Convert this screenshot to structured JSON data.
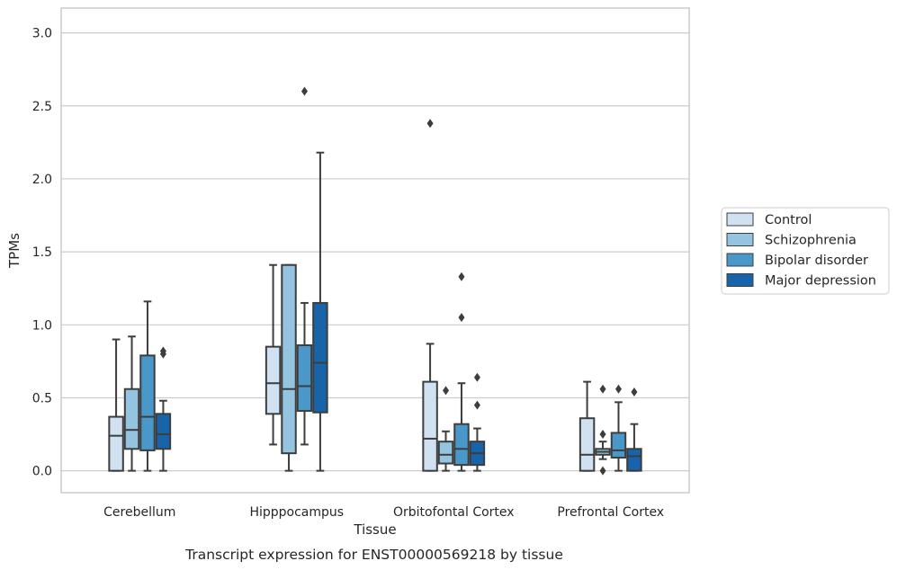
{
  "chart_data": {
    "type": "boxplot",
    "caption": "Transcript expression for ENST00000569218 by tissue",
    "xlabel": "Tissue",
    "ylabel": "TPMs",
    "ylim": [
      -0.15,
      3.17
    ],
    "yticks": [
      0.0,
      0.5,
      1.0,
      1.5,
      2.0,
      2.5,
      3.0
    ],
    "ytick_labels": [
      "0.0",
      "0.5",
      "1.0",
      "1.5",
      "2.0",
      "2.5",
      "3.0"
    ],
    "grid": "horizontal",
    "legend_position": "right",
    "categories": [
      "Cerebellum",
      "Hipppocampus",
      "Orbitofontal Cortex",
      "Prefrontal Cortex"
    ],
    "series": [
      {
        "name": "Control",
        "color": "#d0e1f2",
        "boxes": [
          {
            "whislo": 0.0,
            "q1": 0.0,
            "med": 0.24,
            "q3": 0.37,
            "whishi": 0.9,
            "fliers": []
          },
          {
            "whislo": 0.18,
            "q1": 0.39,
            "med": 0.6,
            "q3": 0.85,
            "whishi": 1.41,
            "fliers": []
          },
          {
            "whislo": 0.0,
            "q1": 0.0,
            "med": 0.22,
            "q3": 0.61,
            "whishi": 0.87,
            "fliers": [
              2.38
            ]
          },
          {
            "whislo": 0.0,
            "q1": 0.0,
            "med": 0.11,
            "q3": 0.36,
            "whishi": 0.61,
            "fliers": []
          }
        ]
      },
      {
        "name": "Schizophrenia",
        "color": "#94c4df",
        "boxes": [
          {
            "whislo": 0.0,
            "q1": 0.15,
            "med": 0.28,
            "q3": 0.56,
            "whishi": 0.92,
            "fliers": []
          },
          {
            "whislo": 0.0,
            "q1": 0.12,
            "med": 0.56,
            "q3": 1.41,
            "whishi": 1.41,
            "fliers": []
          },
          {
            "whislo": 0.0,
            "q1": 0.05,
            "med": 0.11,
            "q3": 0.2,
            "whishi": 0.27,
            "fliers": [
              0.55
            ]
          },
          {
            "whislo": 0.08,
            "q1": 0.11,
            "med": 0.13,
            "q3": 0.15,
            "whishi": 0.2,
            "fliers": [
              0.56,
              0.25,
              0.0
            ]
          }
        ]
      },
      {
        "name": "Bipolar disorder",
        "color": "#4a98c9",
        "boxes": [
          {
            "whislo": 0.0,
            "q1": 0.14,
            "med": 0.37,
            "q3": 0.79,
            "whishi": 1.16,
            "fliers": []
          },
          {
            "whislo": 0.18,
            "q1": 0.41,
            "med": 0.58,
            "q3": 0.86,
            "whishi": 1.15,
            "fliers": [
              2.6
            ]
          },
          {
            "whislo": 0.0,
            "q1": 0.04,
            "med": 0.15,
            "q3": 0.32,
            "whishi": 0.6,
            "fliers": [
              1.33,
              1.05
            ]
          },
          {
            "whislo": 0.0,
            "q1": 0.09,
            "med": 0.14,
            "q3": 0.26,
            "whishi": 0.47,
            "fliers": [
              0.56
            ]
          }
        ]
      },
      {
        "name": "Major depression",
        "color": "#1764ab",
        "boxes": [
          {
            "whislo": 0.0,
            "q1": 0.15,
            "med": 0.25,
            "q3": 0.39,
            "whishi": 0.48,
            "fliers": [
              0.82,
              0.8
            ]
          },
          {
            "whislo": 0.0,
            "q1": 0.4,
            "med": 0.74,
            "q3": 1.15,
            "whishi": 2.18,
            "fliers": []
          },
          {
            "whislo": 0.0,
            "q1": 0.04,
            "med": 0.12,
            "q3": 0.2,
            "whishi": 0.29,
            "fliers": [
              0.64,
              0.45
            ]
          },
          {
            "whislo": 0.0,
            "q1": 0.0,
            "med": 0.1,
            "q3": 0.15,
            "whishi": 0.32,
            "fliers": [
              0.54
            ]
          }
        ]
      }
    ]
  }
}
